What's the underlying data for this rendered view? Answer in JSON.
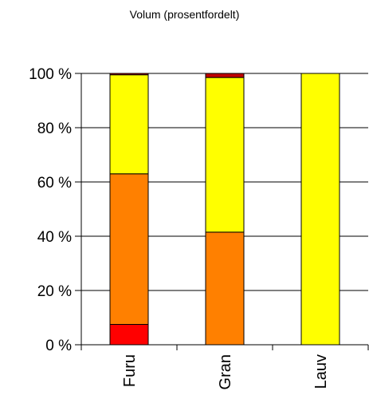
{
  "chart_data": {
    "type": "bar",
    "stacked": true,
    "percent": true,
    "title": "Volum (prosentfordelt)",
    "xlabel": "",
    "ylabel": "",
    "categories": [
      "Furu",
      "Gran",
      "Lauv"
    ],
    "ylim": [
      0,
      100
    ],
    "yticks": [
      0,
      20,
      40,
      60,
      80,
      100
    ],
    "ytick_labels": [
      "0 %",
      "20 %",
      "40 %",
      "60 %",
      "80 %",
      "100 %"
    ],
    "grid": true,
    "legend": "none",
    "series": [
      {
        "color": "#ff0000",
        "values": [
          7.5,
          0,
          0
        ]
      },
      {
        "color": "#ff8000",
        "values": [
          55.5,
          41.5,
          0
        ]
      },
      {
        "color": "#ffff00",
        "values": [
          36.5,
          57,
          100
        ]
      },
      {
        "color": "#c00000",
        "values": [
          0.5,
          1.5,
          0
        ]
      }
    ]
  }
}
